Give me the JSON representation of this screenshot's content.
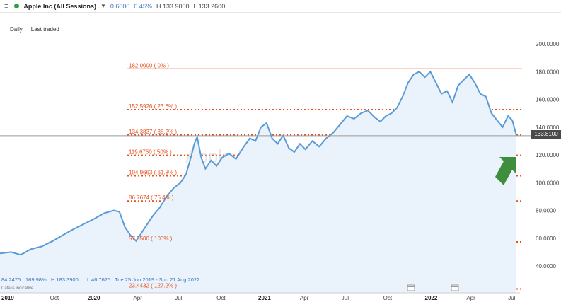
{
  "header": {
    "symbol": "Apple Inc (All Sessions)",
    "change": "0.6000",
    "change_pct": "0.45%",
    "high": "H 133.9000",
    "low": "L 133.2600",
    "status_color": "#2e9e3e"
  },
  "toolbar": {
    "timeframe": "Daily",
    "mode": "Last traded"
  },
  "watermark": "Apple Inc (All Sessions)",
  "current_price_label": "133.8100",
  "info": {
    "close": "84.2475",
    "pct": "169.98%",
    "high": "H 183.3900",
    "low": "L 46.7625",
    "range": "Tue 25 Jun 2019 - Sun 21 Aug 2022",
    "note": "Data is indicative"
  },
  "colors": {
    "price_line": "#5b9bd5",
    "area_fill": "#eaf2fb",
    "fib_line": "#e8511f",
    "fib_text": "#e8511f",
    "arrow": "#3e8e3e",
    "axis_text": "#444444"
  },
  "chart_data": {
    "type": "line",
    "title": "Apple Inc (All Sessions)",
    "xlabel": "",
    "ylabel": "",
    "ylim": [
      30,
      200
    ],
    "y_ticks": [
      "40.0000",
      "60.0000",
      "80.0000",
      "100.0000",
      "120.0000",
      "140.0000",
      "160.0000",
      "180.0000",
      "200.0000"
    ],
    "x_ticks": [
      {
        "label": "2019",
        "t": 0,
        "bold": true
      },
      {
        "label": "Oct",
        "t": 3.5
      },
      {
        "label": "2020",
        "t": 6.2,
        "bold": true
      },
      {
        "label": "Apr",
        "t": 9.5
      },
      {
        "label": "Jul",
        "t": 12.5
      },
      {
        "label": "Oct",
        "t": 15.5
      },
      {
        "label": "2021",
        "t": 18.5,
        "bold": true
      },
      {
        "label": "Apr",
        "t": 21.5
      },
      {
        "label": "Jul",
        "t": 24.5
      },
      {
        "label": "Oct",
        "t": 27.5
      },
      {
        "label": "2022",
        "t": 30.5,
        "bold": true
      },
      {
        "label": "Apr",
        "t": 33.5
      },
      {
        "label": "Jul",
        "t": 36.5
      }
    ],
    "fib_levels": [
      {
        "price": 182.0,
        "label": "182.0000 ( 0% )",
        "solid": true
      },
      {
        "price": 152.5926,
        "label": "152.5926 ( 23.6% )"
      },
      {
        "price": 134.3837,
        "label": "134.3837 ( 38.2% )"
      },
      {
        "price": 119.675,
        "label": "119.6750 ( 50% )"
      },
      {
        "price": 104.9663,
        "label": "104.9663 ( 61.8% )"
      },
      {
        "price": 86.7674,
        "label": "86.7674 ( 76.4% )"
      },
      {
        "price": 57.35,
        "label": "57.3500 ( 100% )"
      },
      {
        "price": 23.4432,
        "label": "23.4432 ( 127.2% )"
      }
    ],
    "current_price": 133.81,
    "series": [
      {
        "values": [
          [
            0,
            49
          ],
          [
            0.8,
            50
          ],
          [
            1.5,
            48
          ],
          [
            2.2,
            52
          ],
          [
            3,
            54
          ],
          [
            3.8,
            58
          ],
          [
            4.5,
            62
          ],
          [
            5.2,
            66
          ],
          [
            6,
            70
          ],
          [
            6.8,
            74
          ],
          [
            7.5,
            78
          ],
          [
            8.2,
            80
          ],
          [
            8.6,
            79
          ],
          [
            9.0,
            68
          ],
          [
            9.4,
            62
          ],
          [
            9.8,
            58
          ],
          [
            10.2,
            64
          ],
          [
            10.6,
            70
          ],
          [
            11,
            76
          ],
          [
            11.5,
            82
          ],
          [
            12,
            90
          ],
          [
            12.5,
            96
          ],
          [
            13,
            100
          ],
          [
            13.4,
            106
          ],
          [
            13.8,
            120
          ],
          [
            14.0,
            128
          ],
          [
            14.2,
            133
          ],
          [
            14.5,
            118
          ],
          [
            14.8,
            110
          ],
          [
            15.2,
            116
          ],
          [
            15.6,
            112
          ],
          [
            16,
            118
          ],
          [
            16.5,
            121
          ],
          [
            17,
            117
          ],
          [
            17.5,
            125
          ],
          [
            18,
            132
          ],
          [
            18.4,
            130
          ],
          [
            18.8,
            140
          ],
          [
            19.2,
            143
          ],
          [
            19.6,
            132
          ],
          [
            20,
            128
          ],
          [
            20.4,
            134
          ],
          [
            20.8,
            125
          ],
          [
            21.2,
            122
          ],
          [
            21.6,
            128
          ],
          [
            22,
            124
          ],
          [
            22.5,
            130
          ],
          [
            23,
            126
          ],
          [
            23.5,
            132
          ],
          [
            24,
            136
          ],
          [
            24.5,
            142
          ],
          [
            25,
            148
          ],
          [
            25.5,
            146
          ],
          [
            26,
            150
          ],
          [
            26.5,
            152
          ],
          [
            27,
            147
          ],
          [
            27.4,
            144
          ],
          [
            27.8,
            148
          ],
          [
            28.2,
            150
          ],
          [
            28.6,
            154
          ],
          [
            29,
            162
          ],
          [
            29.4,
            172
          ],
          [
            29.8,
            178
          ],
          [
            30.2,
            180
          ],
          [
            30.6,
            176
          ],
          [
            31,
            180
          ],
          [
            31.4,
            172
          ],
          [
            31.8,
            164
          ],
          [
            32.2,
            166
          ],
          [
            32.6,
            158
          ],
          [
            33,
            170
          ],
          [
            33.4,
            174
          ],
          [
            33.8,
            178
          ],
          [
            34.2,
            172
          ],
          [
            34.6,
            164
          ],
          [
            35,
            162
          ],
          [
            35.4,
            150
          ],
          [
            35.8,
            145
          ],
          [
            36.2,
            140
          ],
          [
            36.6,
            148
          ],
          [
            36.9,
            145
          ],
          [
            37.2,
            134
          ]
        ]
      }
    ]
  }
}
